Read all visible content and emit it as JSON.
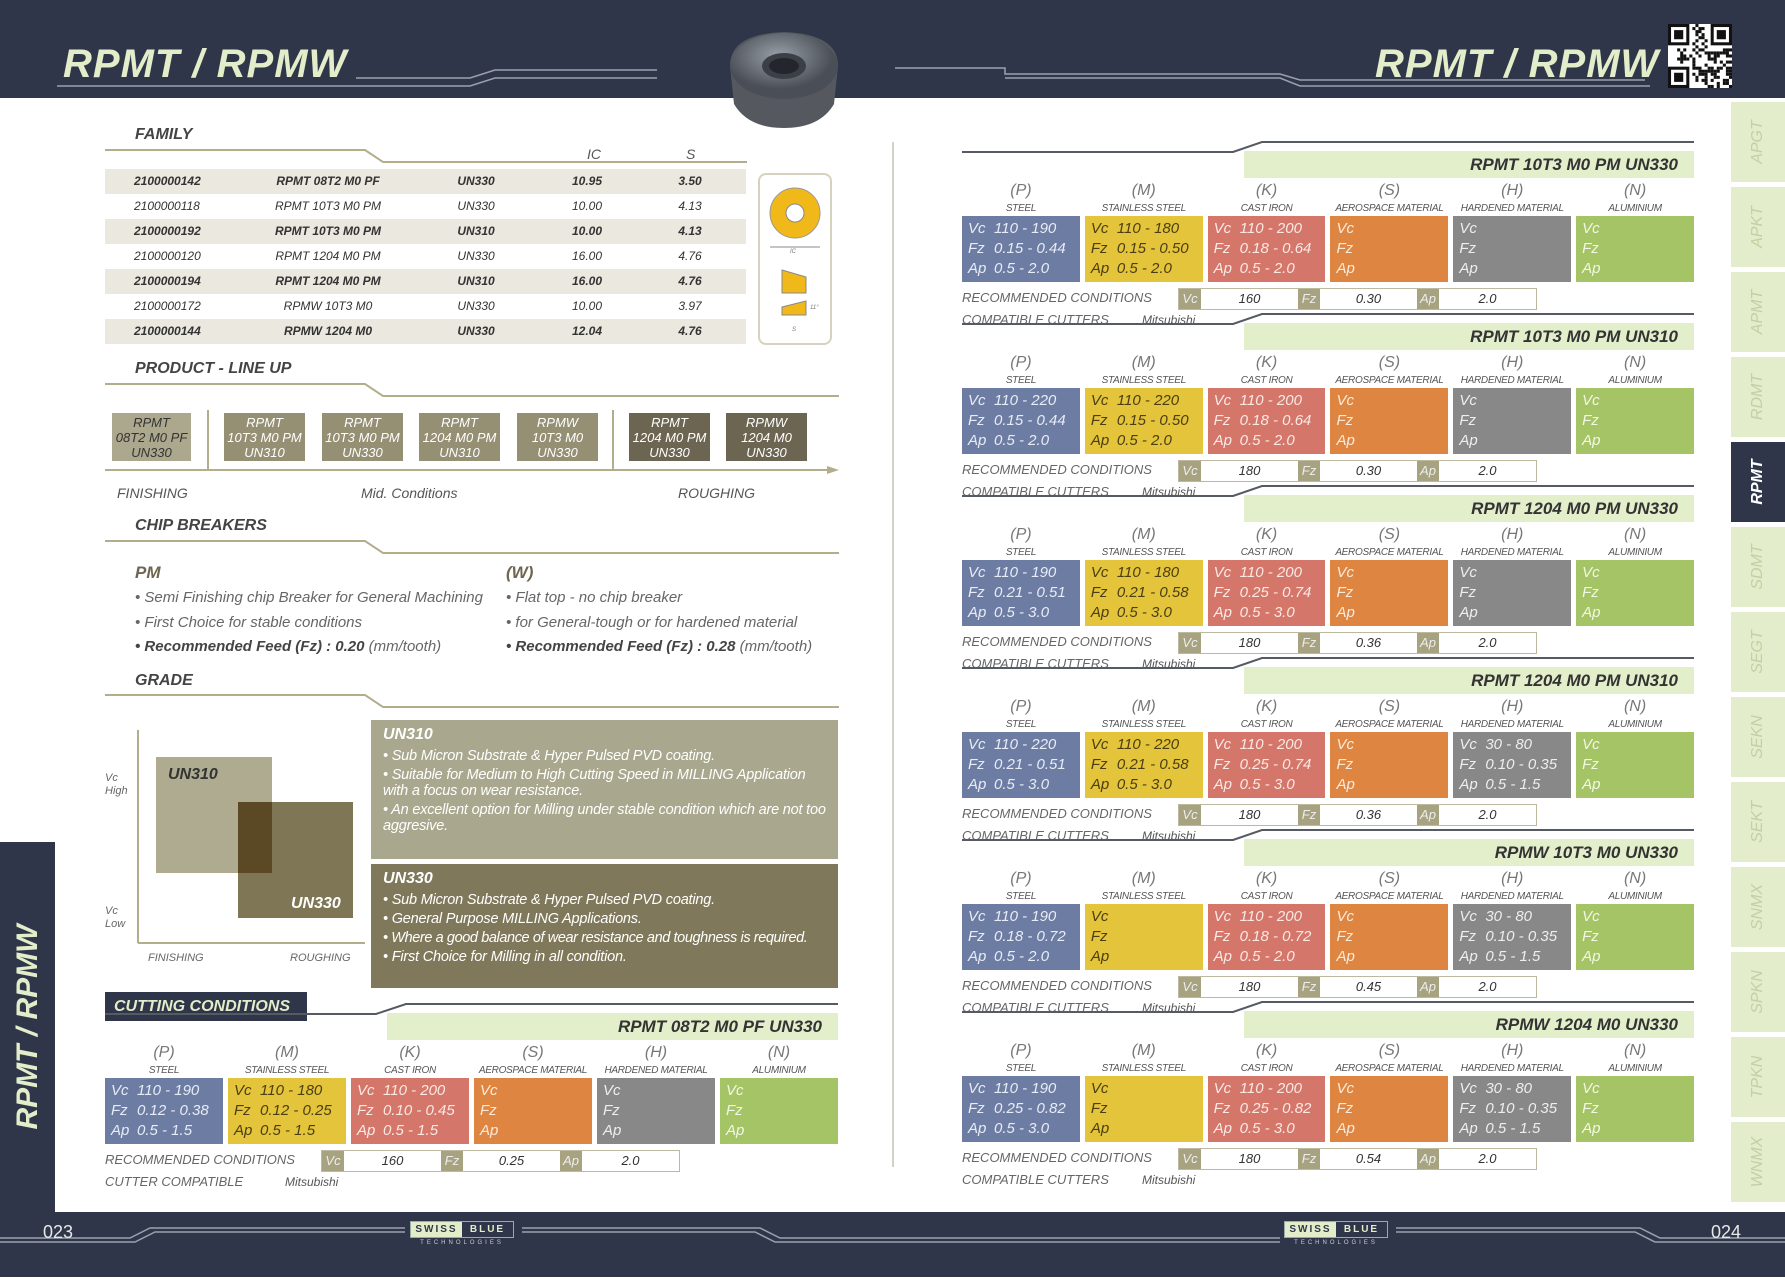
{
  "header": {
    "title_left": "RPMT / RPMW",
    "title_right": "RPMT / RPMW",
    "qr_icon": "qr-code"
  },
  "side_tab_left": "RPMT / RPMW",
  "side_tabs": [
    {
      "label": "APGT",
      "active": false
    },
    {
      "label": "APKT",
      "active": false
    },
    {
      "label": "APMT",
      "active": false
    },
    {
      "label": "RDMT",
      "active": false
    },
    {
      "label": "RPMT",
      "active": true
    },
    {
      "label": "SDMT",
      "active": false
    },
    {
      "label": "SEGT",
      "active": false
    },
    {
      "label": "SEKN",
      "active": false
    },
    {
      "label": "SEKT",
      "active": false
    },
    {
      "label": "SNMX",
      "active": false
    },
    {
      "label": "SPKN",
      "active": false
    },
    {
      "label": "TPKN",
      "active": false
    },
    {
      "label": "WNMX",
      "active": false
    }
  ],
  "family": {
    "heading": "FAMILY",
    "col_ic": "IC",
    "col_s": "S",
    "rows": [
      {
        "code": "2100000142",
        "name": "RPMT 08T2 M0 PF",
        "grade": "UN330",
        "ic": "10.95",
        "s": "3.50"
      },
      {
        "code": "2100000118",
        "name": "RPMT 10T3 M0 PM",
        "grade": "UN330",
        "ic": "10.00",
        "s": "4.13"
      },
      {
        "code": "2100000192",
        "name": "RPMT 10T3 M0 PM",
        "grade": "UN310",
        "ic": "10.00",
        "s": "4.13"
      },
      {
        "code": "2100000120",
        "name": "RPMT 1204 M0 PM",
        "grade": "UN330",
        "ic": "16.00",
        "s": "4.76"
      },
      {
        "code": "2100000194",
        "name": "RPMT 1204 M0 PM",
        "grade": "UN310",
        "ic": "16.00",
        "s": "4.76"
      },
      {
        "code": "2100000172",
        "name": "RPMW 10T3 M0",
        "grade": "UN330",
        "ic": "10.00",
        "s": "3.97"
      },
      {
        "code": "2100000144",
        "name": "RPMW 1204 M0",
        "grade": "UN330",
        "ic": "12.04",
        "s": "4.76"
      }
    ],
    "drawing_labels": {
      "ic": "IC",
      "s": "S",
      "angle": "11°"
    }
  },
  "lineup": {
    "heading": "PRODUCT - LINE UP",
    "items": [
      {
        "l1": "RPMT",
        "l2": "08T2 M0 PF",
        "l3": "UN330"
      },
      {
        "l1": "RPMT",
        "l2": "10T3 M0 PM",
        "l3": "UN310"
      },
      {
        "l1": "RPMT",
        "l2": "10T3 M0 PM",
        "l3": "UN330"
      },
      {
        "l1": "RPMT",
        "l2": "1204 M0 PM",
        "l3": "UN310"
      },
      {
        "l1": "RPMW",
        "l2": "10T3 M0",
        "l3": "UN330"
      },
      {
        "l1": "RPMT",
        "l2": "1204 M0 PM",
        "l3": "UN330"
      },
      {
        "l1": "RPMW",
        "l2": "1204 M0",
        "l3": "UN330"
      }
    ],
    "finishing": "FINISHING",
    "mid": "Mid. Conditions",
    "roughing": "ROUGHING"
  },
  "chip_breakers": {
    "heading": "CHIP BREAKERS",
    "pm": {
      "title": "PM",
      "b1": "• Semi Finishing chip Breaker for General Machining",
      "b2": "• First Choice for stable conditions",
      "b3_bold": "• Recommended Feed (Fz) : 0.20",
      "b3_unit": "(mm/tooth)"
    },
    "w": {
      "title": "(W)",
      "b1": "• Flat top - no chip breaker",
      "b2": "• for General-tough  or  for hardened material",
      "b3_bold": "• Recommended Feed (Fz) : 0.28",
      "b3_unit": "(mm/tooth)"
    }
  },
  "grade": {
    "heading": "GRADE",
    "chart": {
      "vc_high": "Vc\nHigh",
      "vc_high_1": "Vc",
      "vc_high_2": "High",
      "vc_low_1": "Vc",
      "vc_low_2": "Low",
      "finishing": "FINISHING",
      "roughing": "ROUGHING",
      "un310": "UN310",
      "un330": "UN330"
    },
    "un310": {
      "title": "UN310",
      "b1": "• Sub Micron Substrate &  Hyper Pulsed  PVD coating.",
      "b2": "• Suitable for Medium to High Cutting Speed in MILLING Application with a focus on  wear resistance.",
      "b3": "• An excellent option   for Milling under stable condition  which are not too aggresive."
    },
    "un330": {
      "title": "UN330",
      "b1": "• Sub Micron Substrate & Hyper Pulsed  PVD coating.",
      "b2": "• General Purpose MILLING Applications.",
      "b3": "• Where a good balance of wear resistance and toughness is required.",
      "b4": "• First Choice for Milling  in all condition."
    }
  },
  "cutting_conditions_label": "CUTTING CONDITIONS",
  "materials": [
    {
      "code": "(P)",
      "name": "STEEL",
      "color": "#6c7ca2",
      "text": "#e8ecf6"
    },
    {
      "code": "(M)",
      "name": "STAINLESS STEEL",
      "color": "#e4c43b",
      "text": "#4a3e12"
    },
    {
      "code": "(K)",
      "name": "CAST IRON",
      "color": "#d4766a",
      "text": "#fbe9e4"
    },
    {
      "code": "(S)",
      "name": "AEROSPACE MATERIAL",
      "color": "#de8641",
      "text": "#fbeadb"
    },
    {
      "code": "(H)",
      "name": "HARDENED MATERIAL",
      "color": "#888888",
      "text": "#eeeeee"
    },
    {
      "code": "(N)",
      "name": "ALUMINIUM",
      "color": "#a4c465",
      "text": "#f2f8e6"
    }
  ],
  "param_labels": {
    "vc": "Vc",
    "fz": "Fz",
    "ap": "Ap"
  },
  "recommended_label": "RECOMMENDED CONDITIONS",
  "tables": [
    {
      "title": "RPMT 08T2 M0 PF UN330",
      "cells": [
        {
          "vc": "110 - 190",
          "fz": "0.12 - 0.38",
          "ap": "0.5 - 1.5"
        },
        {
          "vc": "110 - 180",
          "fz": "0.12 - 0.25",
          "ap": "0.5 - 1.5"
        },
        {
          "vc": "110 - 200",
          "fz": "0.10 - 0.45",
          "ap": "0.5 - 1.5"
        },
        {
          "vc": "",
          "fz": "",
          "ap": ""
        },
        {
          "vc": "",
          "fz": "",
          "ap": ""
        },
        {
          "vc": "",
          "fz": "",
          "ap": ""
        }
      ],
      "rec": {
        "vc": "160",
        "fz": "0.25",
        "ap": "2.0"
      },
      "cutters_label": "CUTTER COMPATIBLE",
      "cutters": "Mitsubishi"
    },
    {
      "title": "RPMT 10T3 M0 PM UN330",
      "cells": [
        {
          "vc": "110 - 190",
          "fz": "0.15 - 0.44",
          "ap": "0.5 - 2.0"
        },
        {
          "vc": "110 - 180",
          "fz": "0.15 - 0.50",
          "ap": "0.5 - 2.0"
        },
        {
          "vc": "110 - 200",
          "fz": "0.18 - 0.64",
          "ap": "0.5 - 2.0"
        },
        {
          "vc": "",
          "fz": "",
          "ap": ""
        },
        {
          "vc": "",
          "fz": "",
          "ap": ""
        },
        {
          "vc": "",
          "fz": "",
          "ap": ""
        }
      ],
      "rec": {
        "vc": "160",
        "fz": "0.30",
        "ap": "2.0"
      },
      "cutters_label": "COMPATIBLE CUTTERS",
      "cutters": "Mitsubishi"
    },
    {
      "title": "RPMT 10T3 M0 PM UN310",
      "cells": [
        {
          "vc": "110 - 220",
          "fz": "0.15 - 0.44",
          "ap": "0.5 - 2.0"
        },
        {
          "vc": "110 - 220",
          "fz": "0.15 - 0.50",
          "ap": "0.5 - 2.0"
        },
        {
          "vc": "110 - 200",
          "fz": "0.18 - 0.64",
          "ap": "0.5 - 2.0"
        },
        {
          "vc": "",
          "fz": "",
          "ap": ""
        },
        {
          "vc": "",
          "fz": "",
          "ap": ""
        },
        {
          "vc": "",
          "fz": "",
          "ap": ""
        }
      ],
      "rec": {
        "vc": "180",
        "fz": "0.30",
        "ap": "2.0"
      },
      "cutters_label": "COMPATIBLE CUTTERS",
      "cutters": "Mitsubishi"
    },
    {
      "title": "RPMT 1204 M0 PM UN330",
      "cells": [
        {
          "vc": "110 - 190",
          "fz": "0.21 - 0.51",
          "ap": "0.5 - 3.0"
        },
        {
          "vc": "110 - 180",
          "fz": "0.21 - 0.58",
          "ap": "0.5 - 3.0"
        },
        {
          "vc": "110 - 200",
          "fz": "0.25 - 0.74",
          "ap": "0.5 - 3.0"
        },
        {
          "vc": "",
          "fz": "",
          "ap": ""
        },
        {
          "vc": "",
          "fz": "",
          "ap": ""
        },
        {
          "vc": "",
          "fz": "",
          "ap": ""
        }
      ],
      "rec": {
        "vc": "180",
        "fz": "0.36",
        "ap": "2.0"
      },
      "cutters_label": "COMPATIBLE CUTTERS",
      "cutters": "Mitsubishi"
    },
    {
      "title": "RPMT 1204 M0 PM UN310",
      "cells": [
        {
          "vc": "110 - 220",
          "fz": "0.21 - 0.51",
          "ap": "0.5 - 3.0"
        },
        {
          "vc": "110 - 220",
          "fz": "0.21 - 0.58",
          "ap": "0.5 - 3.0"
        },
        {
          "vc": "110 - 200",
          "fz": "0.25 - 0.74",
          "ap": "0.5 - 3.0"
        },
        {
          "vc": "",
          "fz": "",
          "ap": ""
        },
        {
          "vc": "30 - 80",
          "fz": "0.10 - 0.35",
          "ap": "0.5 - 1.5"
        },
        {
          "vc": "",
          "fz": "",
          "ap": ""
        }
      ],
      "rec": {
        "vc": "180",
        "fz": "0.36",
        "ap": "2.0"
      },
      "cutters_label": "COMPATIBLE CUTTERS",
      "cutters": "Mitsubishi"
    },
    {
      "title": "RPMW 10T3 M0 UN330",
      "cells": [
        {
          "vc": "110 - 190",
          "fz": "0.18 - 0.72",
          "ap": "0.5 - 2.0"
        },
        {
          "vc": "",
          "fz": "",
          "ap": ""
        },
        {
          "vc": "110 - 200",
          "fz": "0.18 - 0.72",
          "ap": "0.5 - 2.0"
        },
        {
          "vc": "",
          "fz": "",
          "ap": ""
        },
        {
          "vc": "30 - 80",
          "fz": "0.10 - 0.35",
          "ap": "0.5 - 1.5"
        },
        {
          "vc": "",
          "fz": "",
          "ap": ""
        }
      ],
      "rec": {
        "vc": "180",
        "fz": "0.45",
        "ap": "2.0"
      },
      "cutters_label": "COMPATIBLE CUTTERS",
      "cutters": "Mitsubishi"
    },
    {
      "title": "RPMW 1204 M0 UN330",
      "cells": [
        {
          "vc": "110 - 190",
          "fz": "0.25 - 0.82",
          "ap": "0.5 - 3.0"
        },
        {
          "vc": "",
          "fz": "",
          "ap": ""
        },
        {
          "vc": "110 - 200",
          "fz": "0.25 - 0.82",
          "ap": "0.5 - 3.0"
        },
        {
          "vc": "",
          "fz": "",
          "ap": ""
        },
        {
          "vc": "30 - 80",
          "fz": "0.10 - 0.35",
          "ap": "0.5 - 1.5"
        },
        {
          "vc": "",
          "fz": "",
          "ap": ""
        }
      ],
      "rec": {
        "vc": "180",
        "fz": "0.54",
        "ap": "2.0"
      },
      "cutters_label": "COMPATIBLE CUTTERS",
      "cutters": "Mitsubishi"
    }
  ],
  "footer": {
    "page_left": "023",
    "page_right": "024",
    "logo": {
      "word1": "SWISS",
      "word2": "BLUE",
      "sub": "TECHNOLOGIES"
    }
  }
}
